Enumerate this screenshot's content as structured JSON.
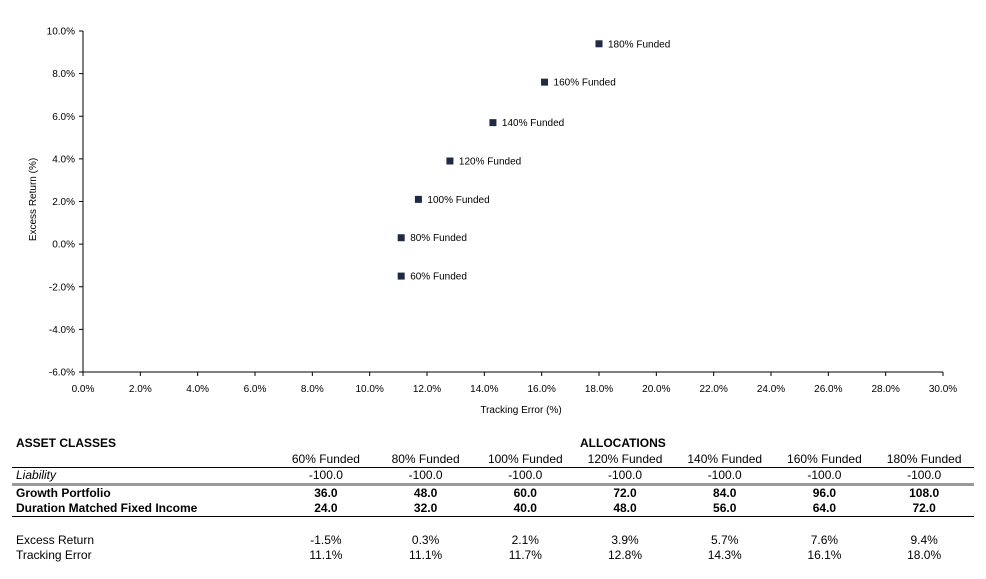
{
  "chart_data": {
    "type": "scatter",
    "xlabel": "Tracking Error (%)",
    "ylabel": "Excess Return (%)",
    "xlim": [
      0,
      30
    ],
    "ylim": [
      -6,
      10
    ],
    "x_ticks": [
      "0.0%",
      "2.0%",
      "4.0%",
      "6.0%",
      "8.0%",
      "10.0%",
      "12.0%",
      "14.0%",
      "16.0%",
      "18.0%",
      "20.0%",
      "22.0%",
      "24.0%",
      "26.0%",
      "28.0%",
      "30.0%"
    ],
    "y_ticks": [
      "-6.0%",
      "-4.0%",
      "-2.0%",
      "0.0%",
      "2.0%",
      "4.0%",
      "6.0%",
      "8.0%",
      "10.0%"
    ],
    "grid": false,
    "marker_color": "#1f2a44",
    "points": [
      {
        "label": "60% Funded",
        "x": 11.1,
        "y": -1.5
      },
      {
        "label": "80% Funded",
        "x": 11.1,
        "y": 0.3
      },
      {
        "label": "100% Funded",
        "x": 11.7,
        "y": 2.1
      },
      {
        "label": "120% Funded",
        "x": 12.8,
        "y": 3.9
      },
      {
        "label": "140% Funded",
        "x": 14.3,
        "y": 5.7
      },
      {
        "label": "160% Funded",
        "x": 16.1,
        "y": 7.6
      },
      {
        "label": "180% Funded",
        "x": 18.0,
        "y": 9.4
      }
    ]
  },
  "table": {
    "left_header": "ASSET CLASSES",
    "group_header": "ALLOCATIONS",
    "columns": [
      "60% Funded",
      "80% Funded",
      "100% Funded",
      "120% Funded",
      "140% Funded",
      "160% Funded",
      "180% Funded"
    ],
    "liability": {
      "label": "Liability",
      "values": [
        "-100.0",
        "-100.0",
        "-100.0",
        "-100.0",
        "-100.0",
        "-100.0",
        "-100.0"
      ]
    },
    "growth": {
      "label": "Growth Portfolio",
      "values": [
        "36.0",
        "48.0",
        "60.0",
        "72.0",
        "84.0",
        "96.0",
        "108.0"
      ]
    },
    "fixed_income": {
      "label": "Duration Matched Fixed Income",
      "values": [
        "24.0",
        "32.0",
        "40.0",
        "48.0",
        "56.0",
        "64.0",
        "72.0"
      ]
    },
    "excess_return": {
      "label": "Excess Return",
      "values": [
        "-1.5%",
        "0.3%",
        "2.1%",
        "3.9%",
        "5.7%",
        "7.6%",
        "9.4%"
      ]
    },
    "tracking_error": {
      "label": "Tracking Error",
      "values": [
        "11.1%",
        "11.1%",
        "11.7%",
        "12.8%",
        "14.3%",
        "16.1%",
        "18.0%"
      ]
    }
  }
}
